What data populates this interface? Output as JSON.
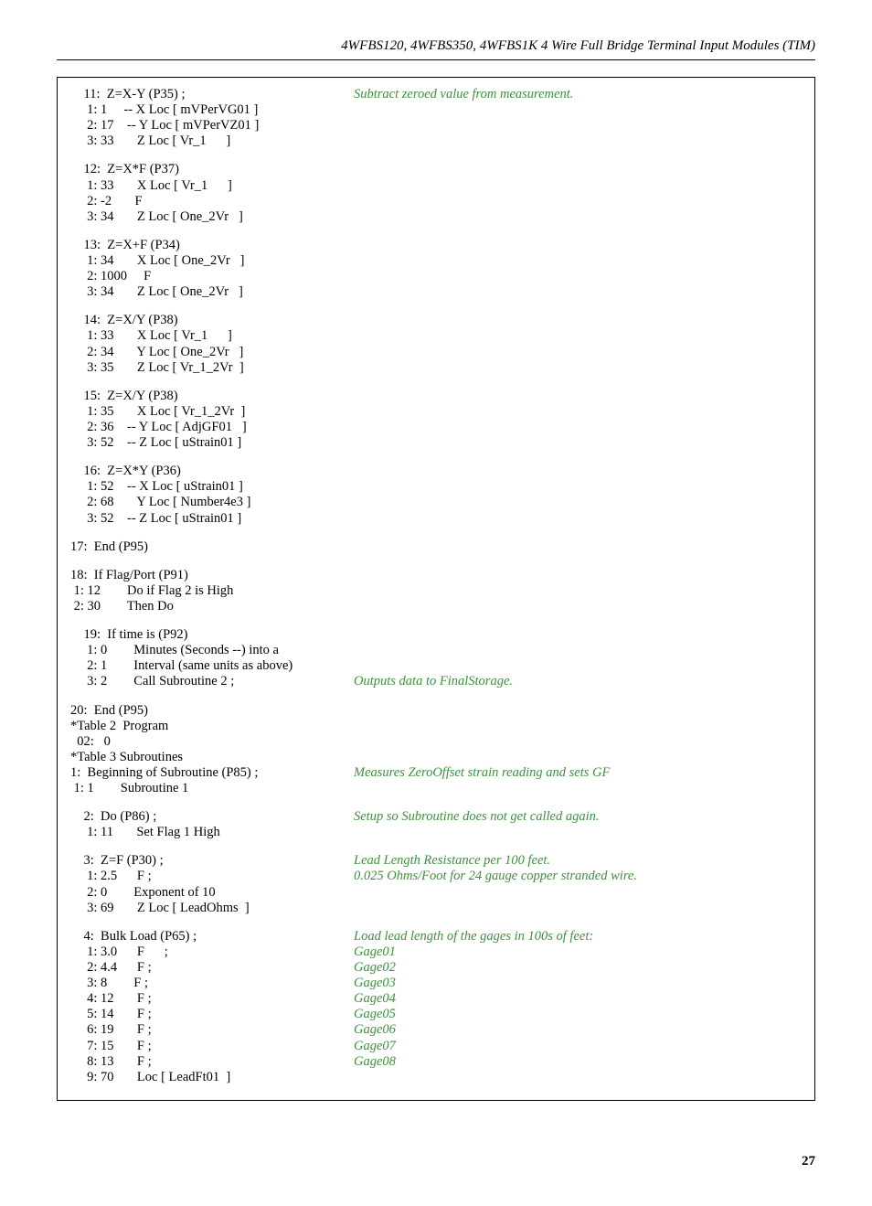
{
  "header": {
    "title": "4WFBS120, 4WFBS350, 4WFBS1K  4 Wire Full Bridge Terminal Input Modules (TIM)"
  },
  "code": {
    "lines": [
      {
        "l": "    11:  Z=X-Y (P35) ;",
        "r": "Subtract zeroed value from measurement."
      },
      {
        "l": "     1: 1     -- X Loc [ mVPerVG01 ]",
        "r": ""
      },
      {
        "l": "     2: 17    -- Y Loc [ mVPerVZ01 ]",
        "r": ""
      },
      {
        "l": "     3: 33       Z Loc [ Vr_1      ]",
        "r": ""
      },
      {
        "blank": true
      },
      {
        "l": "    12:  Z=X*F (P37)",
        "r": ""
      },
      {
        "l": "     1: 33       X Loc [ Vr_1      ]",
        "r": ""
      },
      {
        "l": "     2: -2       F",
        "r": ""
      },
      {
        "l": "     3: 34       Z Loc [ One_2Vr   ]",
        "r": ""
      },
      {
        "blank": true
      },
      {
        "l": "    13:  Z=X+F (P34)",
        "r": ""
      },
      {
        "l": "     1: 34       X Loc [ One_2Vr   ]",
        "r": ""
      },
      {
        "l": "     2: 1000     F",
        "r": ""
      },
      {
        "l": "     3: 34       Z Loc [ One_2Vr   ]",
        "r": ""
      },
      {
        "blank": true
      },
      {
        "l": "    14:  Z=X/Y (P38)",
        "r": ""
      },
      {
        "l": "     1: 33       X Loc [ Vr_1      ]",
        "r": ""
      },
      {
        "l": "     2: 34       Y Loc [ One_2Vr   ]",
        "r": ""
      },
      {
        "l": "     3: 35       Z Loc [ Vr_1_2Vr  ]",
        "r": ""
      },
      {
        "blank": true
      },
      {
        "l": "    15:  Z=X/Y (P38)",
        "r": ""
      },
      {
        "l": "     1: 35       X Loc [ Vr_1_2Vr  ]",
        "r": ""
      },
      {
        "l": "     2: 36    -- Y Loc [ AdjGF01   ]",
        "r": ""
      },
      {
        "l": "     3: 52    -- Z Loc [ uStrain01 ]",
        "r": ""
      },
      {
        "blank": true
      },
      {
        "l": "    16:  Z=X*Y (P36)",
        "r": ""
      },
      {
        "l": "     1: 52    -- X Loc [ uStrain01 ]",
        "r": ""
      },
      {
        "l": "     2: 68       Y Loc [ Number4e3 ]",
        "r": ""
      },
      {
        "l": "     3: 52    -- Z Loc [ uStrain01 ]",
        "r": ""
      },
      {
        "blank": true
      },
      {
        "l": "17:  End (P95)",
        "r": ""
      },
      {
        "blank": true
      },
      {
        "l": "18:  If Flag/Port (P91)",
        "r": ""
      },
      {
        "l": " 1: 12        Do if Flag 2 is High",
        "r": ""
      },
      {
        "l": " 2: 30        Then Do",
        "r": ""
      },
      {
        "blank": true
      },
      {
        "l": "    19:  If time is (P92)",
        "r": ""
      },
      {
        "l": "     1: 0        Minutes (Seconds --) into a",
        "r": ""
      },
      {
        "l": "     2: 1        Interval (same units as above)",
        "r": ""
      },
      {
        "l": "     3: 2        Call Subroutine 2 ;",
        "r": "Outputs data to FinalStorage."
      },
      {
        "blank": true
      },
      {
        "l": "20:  End (P95)",
        "r": ""
      },
      {
        "l": "*Table 2  Program",
        "r": ""
      },
      {
        "l": "  02:   0",
        "r": ""
      },
      {
        "l": "*Table 3 Subroutines",
        "r": ""
      },
      {
        "l": "1:  Beginning of Subroutine (P85) ;",
        "r": "Measures ZeroOffset strain reading and sets GF"
      },
      {
        "l": " 1: 1        Subroutine 1",
        "r": ""
      },
      {
        "blank": true
      },
      {
        "l": "    2:  Do (P86) ;",
        "r": "Setup so Subroutine does not get called again."
      },
      {
        "l": "     1: 11       Set Flag 1 High",
        "r": ""
      },
      {
        "blank": true
      },
      {
        "l": "    3:  Z=F (P30) ;",
        "r": "Lead Length Resistance per 100 feet."
      },
      {
        "l": "     1: 2.5      F ;",
        "r": "0.025 Ohms/Foot for 24 gauge copper stranded wire."
      },
      {
        "l": "     2: 0        Exponent of 10",
        "r": ""
      },
      {
        "l": "     3: 69       Z Loc [ LeadOhms  ]",
        "r": ""
      },
      {
        "blank": true
      },
      {
        "l": "    4:  Bulk Load (P65) ;",
        "r": "Load lead length of the gages in 100s of feet:"
      },
      {
        "l": "     1: 3.0      F      ;",
        "r": "Gage01"
      },
      {
        "l": "     2: 4.4      F ;",
        "r": "Gage02"
      },
      {
        "l": "     3: 8        F ;",
        "r": "Gage03"
      },
      {
        "l": "     4: 12       F ;",
        "r": "Gage04"
      },
      {
        "l": "     5: 14       F ;",
        "r": "Gage05"
      },
      {
        "l": "     6: 19       F ;",
        "r": "Gage06"
      },
      {
        "l": "     7: 15       F ;",
        "r": "Gage07"
      },
      {
        "l": "     8: 13       F ;",
        "r": "Gage08"
      },
      {
        "l": "     9: 70       Loc [ LeadFt01  ]",
        "r": ""
      }
    ]
  },
  "footer": {
    "page_number": "27"
  }
}
